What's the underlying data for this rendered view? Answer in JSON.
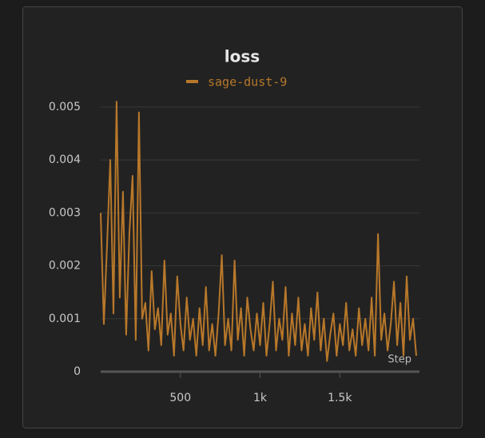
{
  "chart_data": {
    "type": "line",
    "title": "loss",
    "xlabel": "Step",
    "x": [
      0,
      20,
      40,
      60,
      80,
      100,
      120,
      140,
      160,
      180,
      200,
      220,
      240,
      260,
      280,
      300,
      320,
      340,
      360,
      380,
      400,
      420,
      440,
      460,
      480,
      500,
      520,
      540,
      560,
      580,
      600,
      620,
      640,
      660,
      680,
      700,
      720,
      740,
      760,
      780,
      800,
      820,
      840,
      860,
      880,
      900,
      920,
      940,
      960,
      980,
      1000,
      1020,
      1040,
      1060,
      1080,
      1100,
      1120,
      1140,
      1160,
      1180,
      1200,
      1220,
      1240,
      1260,
      1280,
      1300,
      1320,
      1340,
      1360,
      1380,
      1400,
      1420,
      1440,
      1460,
      1480,
      1500,
      1520,
      1540,
      1560,
      1580,
      1600,
      1620,
      1640,
      1660,
      1680,
      1700,
      1720,
      1740,
      1760,
      1780,
      1800,
      1820,
      1840,
      1860,
      1880,
      1900,
      1920,
      1940,
      1960,
      1980
    ],
    "series": [
      {
        "name": "sage-dust-9",
        "color": "#b8782a",
        "values": [
          0.003,
          0.0009,
          0.0024,
          0.004,
          0.0011,
          0.0051,
          0.0014,
          0.0034,
          0.0007,
          0.0026,
          0.0037,
          0.0006,
          0.0049,
          0.001,
          0.0013,
          0.0004,
          0.0019,
          0.0008,
          0.0012,
          0.0005,
          0.0021,
          0.0007,
          0.0011,
          0.0003,
          0.0018,
          0.0009,
          0.0004,
          0.0014,
          0.0006,
          0.001,
          0.0003,
          0.0012,
          0.0005,
          0.0016,
          0.0004,
          0.0009,
          0.0003,
          0.0011,
          0.0022,
          0.0005,
          0.001,
          0.0004,
          0.0021,
          0.0006,
          0.0012,
          0.0003,
          0.0014,
          0.0008,
          0.0004,
          0.0011,
          0.0005,
          0.0013,
          0.0003,
          0.0009,
          0.0017,
          0.0004,
          0.001,
          0.0006,
          0.0016,
          0.0003,
          0.0011,
          0.0005,
          0.0014,
          0.0004,
          0.0009,
          0.0003,
          0.0012,
          0.0006,
          0.0015,
          0.0004,
          0.001,
          0.0002,
          0.0007,
          0.0011,
          0.0003,
          0.0009,
          0.0005,
          0.0013,
          0.0004,
          0.0008,
          0.0003,
          0.0012,
          0.0005,
          0.001,
          0.0004,
          0.0014,
          0.0003,
          0.0026,
          0.0006,
          0.0011,
          0.0004,
          0.0009,
          0.0017,
          0.0005,
          0.0013,
          0.0003,
          0.0018,
          0.0006,
          0.001,
          0.0003
        ]
      }
    ],
    "xlim": [
      0,
      2000
    ],
    "ylim": [
      0,
      0.00515
    ],
    "xticks": [
      500,
      {
        "value": 1000,
        "label": "1k"
      },
      {
        "value": 1500,
        "label": "1.5k"
      }
    ],
    "yticks": [
      0,
      0.001,
      0.002,
      0.003,
      0.004,
      0.005
    ],
    "grid": true
  }
}
